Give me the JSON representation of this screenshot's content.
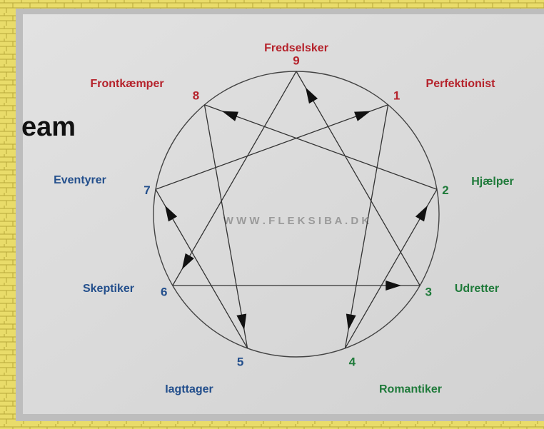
{
  "heading_fragment": "eam",
  "watermark": "W W W . F L E K S I B A . D K",
  "nodes": [
    {
      "number": "9",
      "label": "Fredselsker",
      "color": "#b5222b"
    },
    {
      "number": "1",
      "label": "Perfektionist",
      "color": "#b5222b"
    },
    {
      "number": "2",
      "label": "Hjælper",
      "color": "#1f7a3a"
    },
    {
      "number": "3",
      "label": "Udretter",
      "color": "#1f7a3a"
    },
    {
      "number": "4",
      "label": "Romantiker",
      "color": "#1f7a3a"
    },
    {
      "number": "5",
      "label": "Iagttager",
      "color": "#234f8c"
    },
    {
      "number": "6",
      "label": "Skeptiker",
      "color": "#234f8c"
    },
    {
      "number": "7",
      "label": "Eventyrer",
      "color": "#234f8c"
    },
    {
      "number": "8",
      "label": "Frontkæmper",
      "color": "#b5222b"
    }
  ]
}
